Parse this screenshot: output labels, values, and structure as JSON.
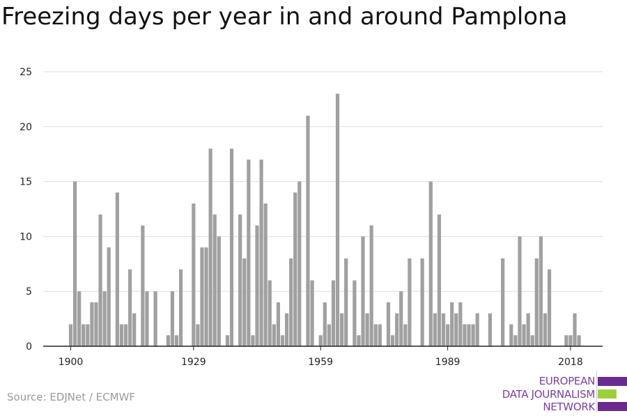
{
  "title": "Freezing days per year in and around Pamplona",
  "source": "Source: EDJNet / ECMWF",
  "logo": {
    "lines": [
      "EUROPEAN",
      "DATA JOURNALISM",
      "NETWORK"
    ],
    "text_color": "#7a3fa0",
    "bar_color": "#6b2b8e",
    "accent_color": "#9ad13b"
  },
  "colors": {
    "bar": "#a0a0a0",
    "grid": "#dddddd",
    "axis": "#222222",
    "tick_text": "#222222"
  },
  "chart_data": {
    "type": "bar",
    "title": "Freezing days per year in and around Pamplona",
    "xlabel": "",
    "ylabel": "",
    "ylim": [
      0,
      25
    ],
    "yticks": [
      0,
      5,
      10,
      15,
      20,
      25
    ],
    "xticks": [
      1900,
      1929,
      1959,
      1989,
      2018
    ],
    "grid": true,
    "x": [
      1900,
      1901,
      1902,
      1903,
      1904,
      1905,
      1906,
      1907,
      1908,
      1909,
      1910,
      1911,
      1912,
      1913,
      1914,
      1915,
      1916,
      1917,
      1918,
      1919,
      1920,
      1921,
      1922,
      1923,
      1924,
      1925,
      1926,
      1927,
      1928,
      1929,
      1930,
      1931,
      1932,
      1933,
      1934,
      1935,
      1936,
      1937,
      1938,
      1939,
      1940,
      1941,
      1942,
      1943,
      1944,
      1945,
      1946,
      1947,
      1948,
      1949,
      1950,
      1951,
      1952,
      1953,
      1954,
      1955,
      1956,
      1957,
      1958,
      1959,
      1960,
      1961,
      1962,
      1963,
      1964,
      1965,
      1966,
      1967,
      1968,
      1969,
      1970,
      1971,
      1972,
      1973,
      1974,
      1975,
      1976,
      1977,
      1978,
      1979,
      1980,
      1981,
      1982,
      1983,
      1984,
      1985,
      1986,
      1987,
      1988,
      1989,
      1990,
      1991,
      1992,
      1993,
      1994,
      1995,
      1996,
      1997,
      1998,
      1999,
      2000,
      2001,
      2002,
      2003,
      2004,
      2005,
      2006,
      2007,
      2008,
      2009,
      2010,
      2011,
      2012,
      2013,
      2014,
      2015,
      2016,
      2017,
      2018,
      2019,
      2020
    ],
    "values": [
      2,
      15,
      5,
      2,
      2,
      4,
      4,
      12,
      5,
      9,
      0,
      14,
      2,
      2,
      7,
      3,
      0,
      11,
      5,
      0,
      5,
      0,
      0,
      1,
      5,
      1,
      7,
      0,
      0,
      13,
      2,
      9,
      9,
      18,
      12,
      10,
      0,
      1,
      18,
      0,
      12,
      8,
      17,
      1,
      11,
      17,
      13,
      6,
      2,
      4,
      1,
      3,
      8,
      14,
      15,
      0,
      21,
      6,
      0,
      1,
      4,
      2,
      6,
      23,
      3,
      8,
      0,
      6,
      1,
      10,
      3,
      11,
      2,
      2,
      0,
      4,
      1,
      3,
      5,
      2,
      8,
      0,
      0,
      8,
      0,
      15,
      3,
      12,
      3,
      2,
      4,
      3,
      4,
      2,
      2,
      2,
      3,
      0,
      0,
      3,
      0,
      0,
      8,
      0,
      2,
      1,
      10,
      2,
      3,
      1,
      8,
      10,
      3,
      7,
      0,
      0,
      0,
      1,
      1,
      3,
      1
    ]
  }
}
